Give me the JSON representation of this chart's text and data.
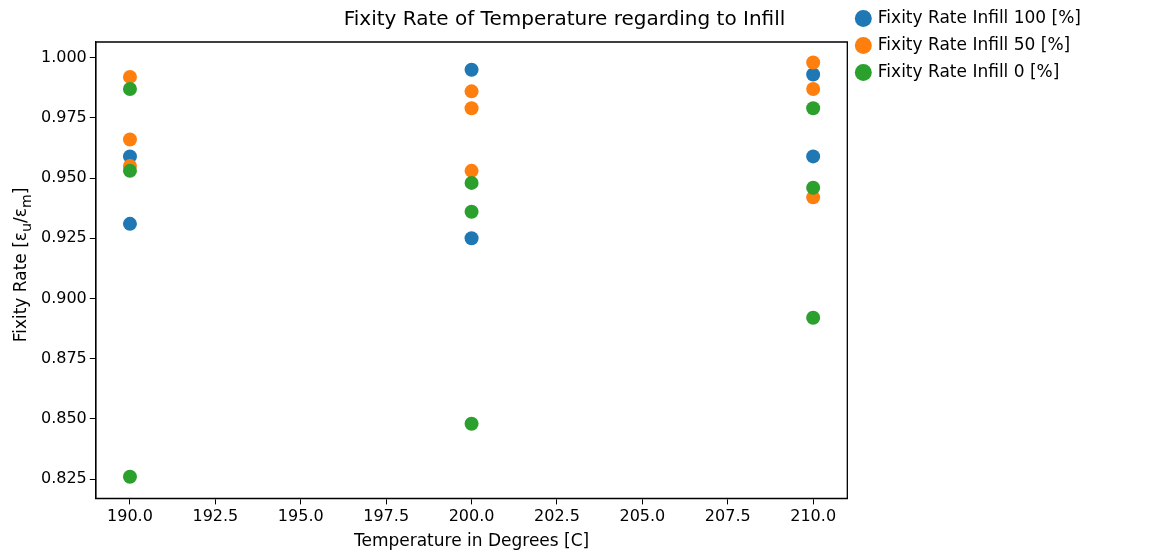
{
  "chart_data": {
    "type": "scatter",
    "title": "Fixity Rate of Temperature regarding to Infill",
    "xlabel": "Temperature in Degrees [C]",
    "ylabel": "Fixity Rate [ε$_{u}$/ε$_{m}$]",
    "series": [
      {
        "name": "Fixity Rate Infill 100 [%]",
        "color": "#1f77b4",
        "x": [
          190,
          190,
          200,
          200,
          210,
          210
        ],
        "values": [
          0.959,
          0.931,
          0.995,
          0.925,
          0.993,
          0.959
        ]
      },
      {
        "name": "Fixity Rate Infill 50 [%]",
        "color": "#ff7f0e",
        "x": [
          190,
          190,
          190,
          200,
          200,
          200,
          210,
          210,
          210
        ],
        "values": [
          0.992,
          0.966,
          0.955,
          0.986,
          0.979,
          0.953,
          0.998,
          0.987,
          0.942
        ]
      },
      {
        "name": "Fixity Rate Infill 0 [%]",
        "color": "#2ca02c",
        "x": [
          190,
          190,
          190,
          200,
          200,
          200,
          210,
          210,
          210
        ],
        "values": [
          0.987,
          0.953,
          0.826,
          0.948,
          0.936,
          0.848,
          0.979,
          0.946,
          0.892
        ]
      }
    ],
    "xlim": [
      189,
      211
    ],
    "xticks": [
      {
        "value": 190,
        "label": "190.0"
      },
      192.5,
      {
        "value": 195,
        "label": "195.0"
      },
      197.5,
      {
        "value": 200,
        "label": "200.0"
      },
      202.5,
      {
        "value": 205,
        "label": "205.0"
      },
      207.5,
      {
        "value": 210,
        "label": "210.0"
      }
    ],
    "ylim": [
      0.817,
      1.0065
    ],
    "yticks": [
      0.825,
      {
        "value": 0.85,
        "label": "0.850"
      },
      0.875,
      {
        "value": 0.9,
        "label": "0.900"
      },
      0.925,
      {
        "value": 0.95,
        "label": "0.950"
      },
      0.975,
      {
        "value": 1.0,
        "label": "1.000"
      }
    ],
    "marker": "circle",
    "grid": false,
    "legend": "top right"
  }
}
